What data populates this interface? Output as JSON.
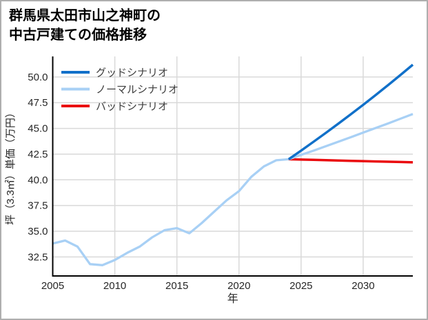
{
  "window": {
    "background": "#ffffff",
    "border_color": "#aeaeae"
  },
  "title": {
    "line1": "群馬県太田市山之神町の",
    "line2": "中古戸建ての価格推移"
  },
  "axes_style": {
    "grid_color": "#d9d9d9",
    "spine_color": "#000000",
    "tick_label_color": "#262626",
    "axis_label_color": "#262626",
    "legend_text_color": "#3d3d3d"
  },
  "chart_data": {
    "type": "line",
    "title": "群馬県太田市山之神町の中古戸建ての価格推移",
    "xlabel": "年",
    "ylabel": "坪（3.3㎡）単価（万円）",
    "xlim": [
      2005,
      2034
    ],
    "ylim": [
      30.65,
      52.0
    ],
    "x_ticks": [
      2005,
      2010,
      2015,
      2020,
      2025,
      2030
    ],
    "y_ticks": [
      32.5,
      35.0,
      37.5,
      40.0,
      42.5,
      45.0,
      47.5,
      50.0
    ],
    "y_tick_decimals": 1,
    "grid": true,
    "legend_position": "upper-left",
    "series": [
      {
        "name": "グッドシナリオ",
        "in_legend": true,
        "color": "#1170c9",
        "width": 3.5,
        "x": [
          2024,
          2025,
          2026,
          2027,
          2028,
          2029,
          2030,
          2031,
          2032,
          2033,
          2034
        ],
        "values": [
          42.0,
          42.84,
          43.7,
          44.57,
          45.46,
          46.37,
          47.29,
          48.24,
          49.21,
          50.19,
          51.2
        ]
      },
      {
        "name": "ノーマルシナリオ",
        "in_legend": true,
        "color": "#a8d0f5",
        "width": 3.3,
        "x": [
          2024,
          2025,
          2026,
          2027,
          2028,
          2029,
          2030,
          2031,
          2032,
          2033,
          2034
        ],
        "values": [
          42.0,
          42.42,
          42.84,
          43.27,
          43.71,
          44.14,
          44.59,
          45.03,
          45.48,
          45.94,
          46.4
        ]
      },
      {
        "name": "バッドシナリオ",
        "in_legend": true,
        "color": "#ea0b0e",
        "width": 3.5,
        "x": [
          2024,
          2025,
          2026,
          2027,
          2028,
          2029,
          2030,
          2031,
          2032,
          2033,
          2034
        ],
        "values": [
          42.0,
          41.97,
          41.94,
          41.91,
          41.88,
          41.85,
          41.82,
          41.79,
          41.76,
          41.73,
          41.7
        ]
      },
      {
        "name": "価格実績",
        "in_legend": false,
        "color": "#a8d0f5",
        "width": 3.3,
        "x": [
          2005,
          2006,
          2007,
          2008,
          2009,
          2010,
          2011,
          2012,
          2013,
          2014,
          2015,
          2016,
          2017,
          2018,
          2019,
          2020,
          2021,
          2022,
          2023,
          2024
        ],
        "values": [
          33.8,
          34.1,
          33.5,
          31.8,
          31.7,
          32.2,
          32.9,
          33.5,
          34.4,
          35.1,
          35.3,
          34.8,
          35.8,
          36.9,
          38.0,
          38.9,
          40.3,
          41.3,
          41.9,
          42.0
        ]
      }
    ]
  }
}
